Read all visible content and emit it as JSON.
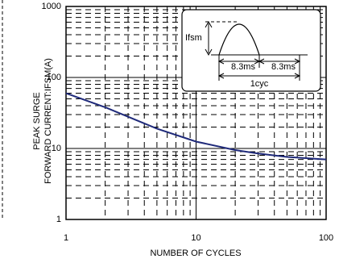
{
  "chart_data": {
    "type": "line",
    "xlabel": "NUMBER OF CYCLES",
    "ylabel": [
      "PEAK SURGE",
      "FORWARD CURRENT:IFSM(A)"
    ],
    "x": [
      1,
      2,
      3,
      5,
      10,
      20,
      30,
      50,
      100
    ],
    "series": [
      {
        "color": "#1f2a7a",
        "values": [
          60,
          38,
          28,
          19,
          12.5,
          9.5,
          8.5,
          7.6,
          7
        ]
      }
    ],
    "xscale": "log",
    "yscale": "log",
    "xlim": [
      1,
      100
    ],
    "ylim": [
      1,
      1000
    ],
    "xticks": [
      1,
      10,
      100
    ],
    "yticks": [
      1,
      10,
      100,
      1000
    ],
    "x_minor_ticks": [
      2,
      3,
      4,
      5,
      6,
      7,
      8,
      9,
      20,
      30,
      40,
      50,
      60,
      70,
      80,
      90
    ],
    "y_minor_ticks": [
      2,
      3,
      4,
      5,
      6,
      7,
      8,
      9,
      20,
      30,
      40,
      50,
      60,
      70,
      80,
      90,
      200,
      300,
      400,
      500,
      600,
      700,
      800,
      900
    ],
    "grid": true,
    "annotations": [
      "Ifsm",
      "8.3ms",
      "8.3ms",
      "1cyc"
    ]
  }
}
